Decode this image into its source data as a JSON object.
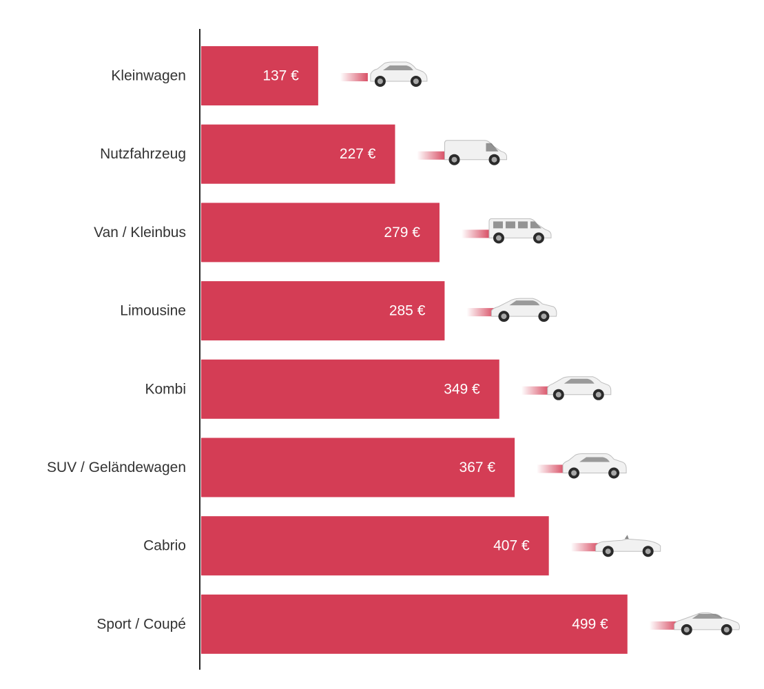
{
  "chart_data": {
    "type": "bar",
    "orientation": "horizontal",
    "title": "",
    "xlabel": "",
    "ylabel": "",
    "categories": [
      "Kleinwagen",
      "Nutzfahrzeug",
      "Van / Kleinbus",
      "Limousine",
      "Kombi",
      "SUV / Geländewagen",
      "Cabrio",
      "Sport / Coupé"
    ],
    "values": [
      137,
      227,
      279,
      285,
      349,
      367,
      407,
      499
    ],
    "value_labels": [
      "137 €",
      "227 €",
      "279 €",
      "285 €",
      "349 €",
      "367 €",
      "407 €",
      "499 €"
    ],
    "car_icons": [
      "small-car-icon",
      "delivery-van-icon",
      "minibus-icon",
      "sedan-icon",
      "station-wagon-icon",
      "suv-icon",
      "convertible-icon",
      "sports-coupe-icon"
    ],
    "xlim": [
      0,
      510
    ],
    "grid": false,
    "legend": "none",
    "bar_color": "#d43d55",
    "axis_color": "#222222",
    "label_color": "#333333",
    "value_label_color": "#ffffff",
    "car_body_color": "#f1f1f1",
    "car_detail_color": "#6b6b6b"
  }
}
